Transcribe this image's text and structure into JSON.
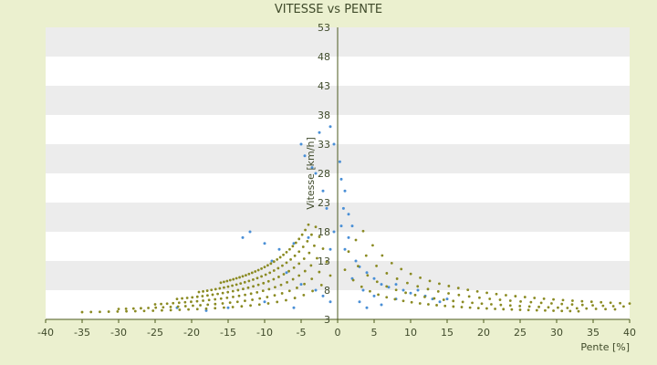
{
  "chart_data": {
    "type": "scatter",
    "title": "VITESSE vs PENTE",
    "xlabel": "Pente [%]",
    "ylabel": "Vitesse [km/h]",
    "xlim": [
      -40,
      40
    ],
    "ylim": [
      3,
      53
    ],
    "x_ticks": [
      -40,
      -35,
      -30,
      -25,
      -20,
      -15,
      -10,
      -5,
      0,
      5,
      10,
      15,
      20,
      25,
      30,
      35,
      40
    ],
    "y_ticks": [
      3,
      8,
      13,
      18,
      23,
      28,
      33,
      38,
      43,
      48,
      53
    ],
    "grid": "horizontal alternating bands",
    "colors": {
      "background": "#ebf0cf",
      "plot": "#ffffff",
      "band": "#ececec",
      "axis": "#4b5a1e",
      "series_blue": "#4a8fd6",
      "series_olive": "#8a8a22"
    },
    "series": [
      {
        "color": "#4a8fd6",
        "marker": "dot",
        "points": [
          [
            -5,
            33
          ],
          [
            -4.5,
            31
          ],
          [
            -3.5,
            29
          ],
          [
            -3,
            28
          ],
          [
            -2.5,
            35
          ],
          [
            -1,
            36
          ],
          [
            -0.5,
            33
          ],
          [
            -2,
            25
          ],
          [
            -1.5,
            22
          ],
          [
            0.5,
            27
          ],
          [
            1,
            25
          ],
          [
            1.5,
            21
          ],
          [
            2,
            19
          ],
          [
            -4,
            17
          ],
          [
            -6,
            16
          ],
          [
            -8,
            15
          ],
          [
            -10,
            16
          ],
          [
            -12,
            18
          ],
          [
            -13,
            17
          ],
          [
            -9,
            13
          ],
          [
            -7,
            11
          ],
          [
            -5,
            9
          ],
          [
            -3,
            8
          ],
          [
            -2,
            7
          ],
          [
            -1,
            6
          ],
          [
            -6,
            5
          ],
          [
            -10,
            6
          ],
          [
            -15,
            5
          ],
          [
            -18,
            4.5
          ],
          [
            -22,
            5
          ],
          [
            2.5,
            13
          ],
          [
            3,
            12
          ],
          [
            4,
            11
          ],
          [
            5,
            10
          ],
          [
            6,
            9
          ],
          [
            7,
            8.5
          ],
          [
            8,
            9
          ],
          [
            9,
            8
          ],
          [
            10,
            7.5
          ],
          [
            11,
            8
          ],
          [
            12,
            7
          ],
          [
            13,
            6.5
          ],
          [
            14,
            6
          ],
          [
            15,
            6.5
          ],
          [
            3,
            6
          ],
          [
            4,
            5
          ],
          [
            6,
            5.5
          ],
          [
            8,
            6.5
          ],
          [
            1,
            15
          ],
          [
            1.5,
            17
          ],
          [
            0.5,
            19
          ],
          [
            -0.5,
            18
          ],
          [
            -1,
            15
          ],
          [
            0.8,
            22
          ],
          [
            0.3,
            30
          ],
          [
            2,
            10
          ],
          [
            3.5,
            8
          ],
          [
            5,
            7
          ]
        ]
      },
      {
        "color": "#8a8a22",
        "marker": "dot",
        "curves": [
          {
            "side": "left",
            "from": -35,
            "to": -1,
            "scale": 28
          },
          {
            "side": "left",
            "from": -30,
            "to": -1.5,
            "scale": 42
          },
          {
            "side": "left",
            "from": -25,
            "to": -2,
            "scale": 58
          },
          {
            "side": "left",
            "from": -22,
            "to": -2.5,
            "scale": 75
          },
          {
            "side": "left",
            "from": -19,
            "to": -3,
            "scale": 92
          },
          {
            "side": "left",
            "from": -16,
            "to": -4,
            "scale": 110
          },
          {
            "side": "right",
            "from": 1,
            "to": 33,
            "scale": 32
          },
          {
            "side": "right",
            "from": 1.5,
            "to": 38,
            "scale": 50
          },
          {
            "side": "right",
            "from": 2.5,
            "to": 42,
            "scale": 72
          },
          {
            "side": "right",
            "from": 3.5,
            "to": 40,
            "scale": 95
          }
        ]
      }
    ]
  }
}
